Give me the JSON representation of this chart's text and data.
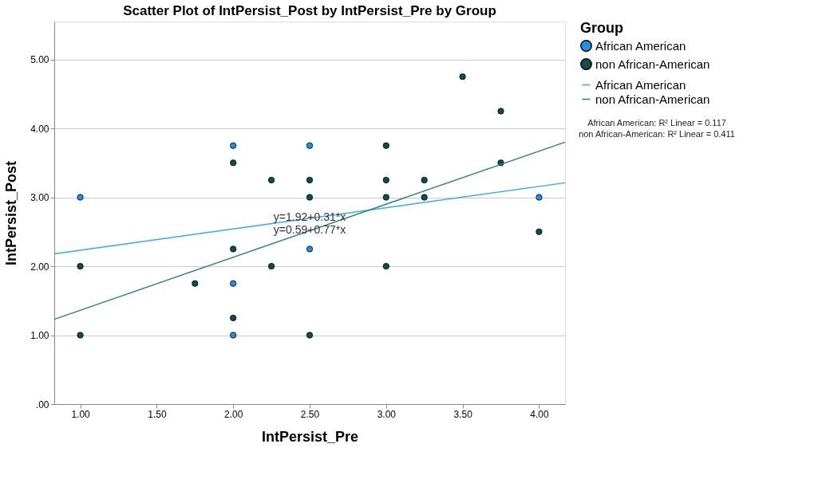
{
  "chart_data": {
    "type": "scatter",
    "title": "Scatter Plot of IntPersist_Post by IntPersist_Pre by Group",
    "xlabel": "IntPersist_Pre",
    "ylabel": "IntPersist_Post",
    "legend_title": "Group",
    "xlim": [
      0.83,
      4.17
    ],
    "xticks": [
      {
        "value": 1,
        "label": "1.00"
      },
      {
        "value": 1.5,
        "label": "1.50"
      },
      {
        "value": 2,
        "label": "2.00"
      },
      {
        "value": 2.5,
        "label": "2.50"
      },
      {
        "value": 3,
        "label": "3.00"
      },
      {
        "value": 3.5,
        "label": "3.50"
      },
      {
        "value": 4,
        "label": "4.00"
      }
    ],
    "ylim": [
      0,
      5.55
    ],
    "yticks": [
      {
        "value": 0,
        "label": ".00"
      },
      {
        "value": 1,
        "label": "1.00"
      },
      {
        "value": 2,
        "label": "2.00"
      },
      {
        "value": 3,
        "label": "3.00"
      },
      {
        "value": 4,
        "label": "4.00"
      },
      {
        "value": 5,
        "label": "5.00"
      }
    ],
    "grid": "y",
    "legend": "right",
    "marker": "circle",
    "series": [
      {
        "name": "African American",
        "color": "#1f8fe8",
        "x": [
          1,
          2,
          2.5,
          2,
          2,
          2.5,
          4
        ],
        "values": [
          3,
          3.75,
          3.75,
          1.75,
          1,
          2.25,
          3
        ]
      },
      {
        "name": "non African-American",
        "color": "#0b4f4f",
        "x": [
          1,
          1,
          2,
          2.25,
          2.5,
          2.5,
          2,
          2.25,
          1.75,
          2,
          2.5,
          3,
          3,
          3,
          3.25,
          3.25,
          3,
          3.5,
          3.75,
          3.75,
          4
        ],
        "values": [
          2,
          1,
          3.5,
          3.25,
          3.25,
          3,
          2.25,
          2,
          1.75,
          1.25,
          1,
          3.75,
          3.25,
          3,
          3.25,
          3,
          2,
          4.75,
          4.25,
          3.5,
          2.5
        ]
      },
      {
        "name": "African American",
        "color": "#3aa6f0",
        "type": "line",
        "marker": "none",
        "x": [
          0.83,
          4.17
        ],
        "values": [
          2.18,
          3.21
        ]
      },
      {
        "name": "non African-American",
        "color": "#2a8080",
        "type": "line",
        "marker": "none",
        "x": [
          0.83,
          4.17
        ],
        "values": [
          1.23,
          3.8
        ]
      }
    ],
    "annotations": [
      {
        "text": "y=1.92+0.31*x",
        "x": 2.5,
        "y": 2.7
      },
      {
        "text": "y=0.59+0.77*x",
        "x": 2.5,
        "y": 2.52
      },
      "African American: R² Linear = 0.117",
      "non African-American: R² Linear = 0.411"
    ]
  }
}
